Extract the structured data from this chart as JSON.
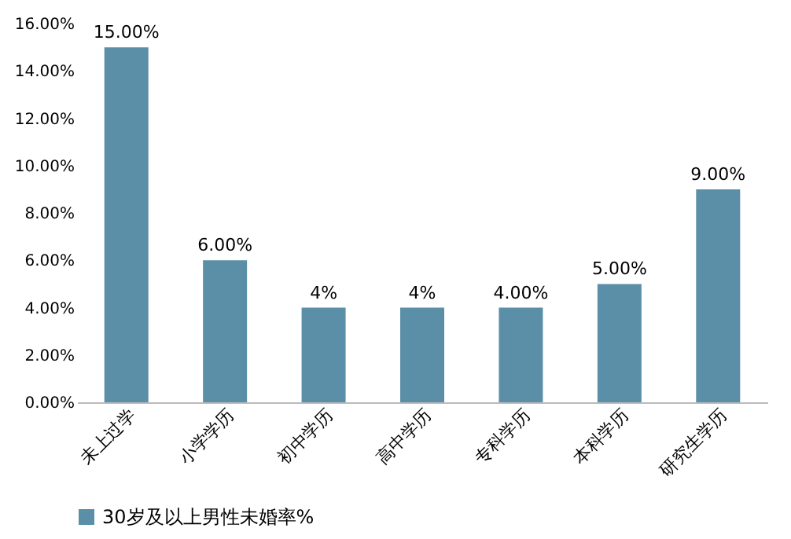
{
  "chart_data": {
    "type": "bar",
    "categories": [
      "未上过学",
      "小学学历",
      "初中学历",
      "高中学历",
      "专科学历",
      "本科学历",
      "研究生学历"
    ],
    "series": [
      {
        "name": "30岁及以上男性未婚率%",
        "color": "#5b8fa8",
        "values": [
          15,
          6,
          4,
          4,
          4,
          5,
          9
        ],
        "value_labels": [
          "15.00%",
          "6.00%",
          "4%",
          "4%",
          "4.00%",
          "5.00%",
          "9.00%"
        ]
      }
    ],
    "ylim": [
      0,
      16
    ],
    "yticks": [
      {
        "value": 0,
        "label": "0.00%"
      },
      {
        "value": 2,
        "label": "2.00%"
      },
      {
        "value": 4,
        "label": "4.00%"
      },
      {
        "value": 6,
        "label": "6.00%"
      },
      {
        "value": 8,
        "label": "8.00%"
      },
      {
        "value": 10,
        "label": "10.00%"
      },
      {
        "value": 12,
        "label": "12.00%"
      },
      {
        "value": 14,
        "label": "14.00%"
      },
      {
        "value": 16,
        "label": "16.00%"
      }
    ],
    "grid": false,
    "legend": "bottom"
  }
}
